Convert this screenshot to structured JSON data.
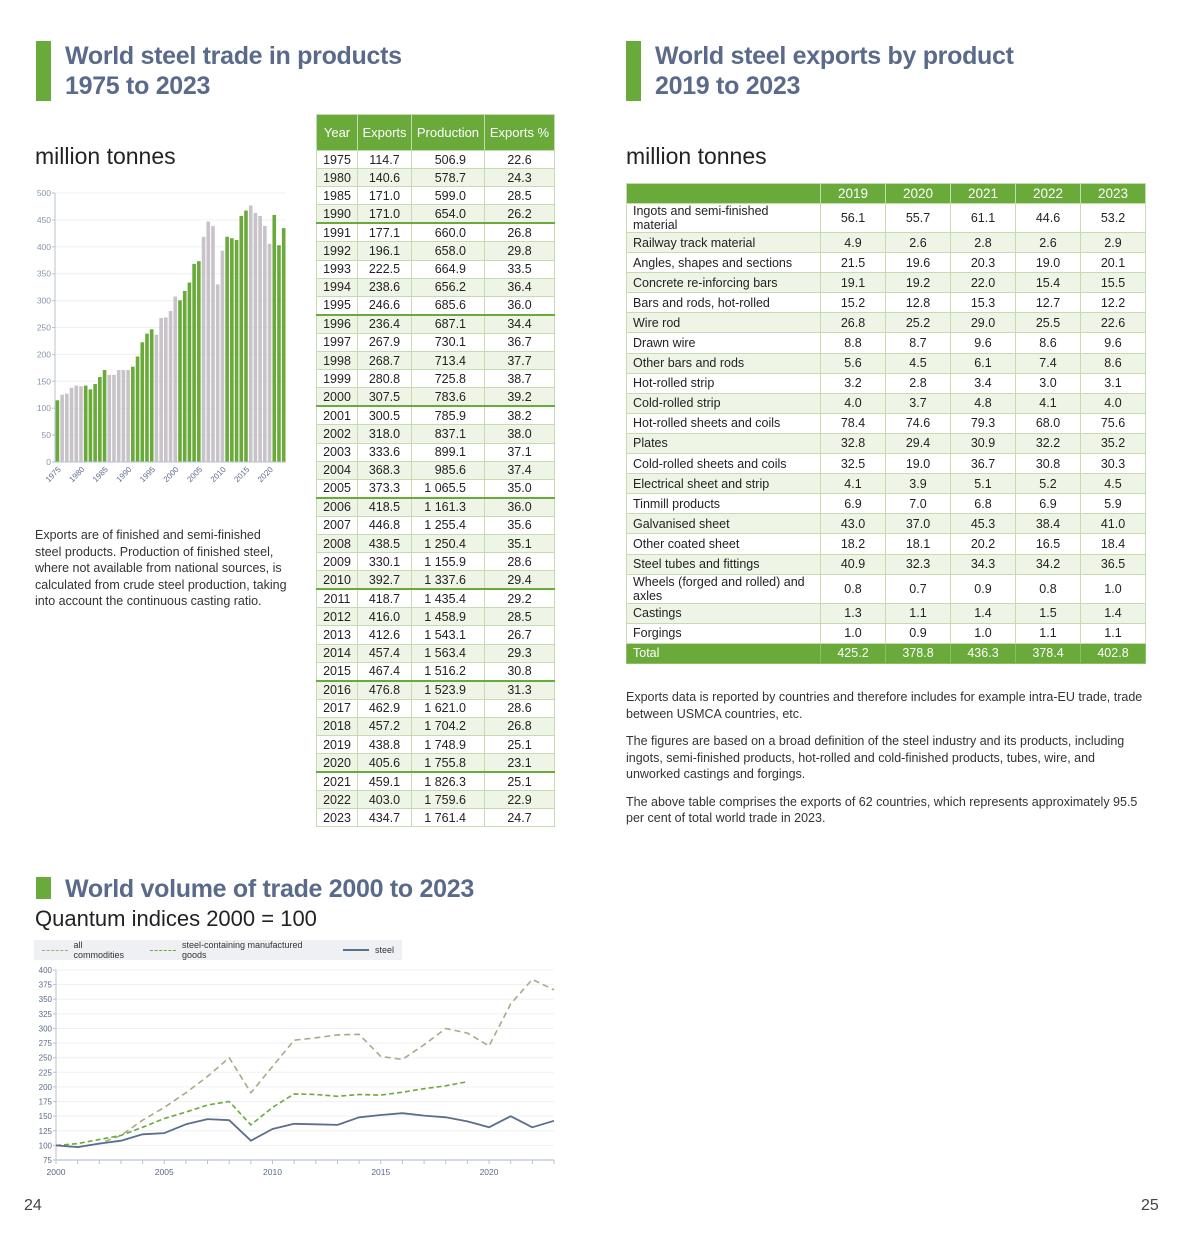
{
  "left_page": {
    "heading1": {
      "line1": "World steel trade in products",
      "line2": "1975 to 2023"
    },
    "unit_label": "million tonnes",
    "description": "Exports are of finished and semi-finished steel products. Production of finished steel, where not available from national sources, is calculated from crude steel production, taking into account the continuous casting ratio.",
    "heading2": "World volume of trade 2000 to 2023",
    "subtitle2": "Quantum indices 2000 = 100",
    "page_number": "24"
  },
  "right_page": {
    "heading": {
      "line1": "World steel exports by product",
      "line2": "2019 to 2023"
    },
    "unit_label": "million tonnes",
    "notes": [
      "Exports data is reported by countries and therefore includes for example intra-EU trade, trade between USMCA countries, etc.",
      "The figures are based on a broad definition of the steel industry and its products, including ingots, semi-finished products, hot-rolled and cold-finished products, tubes, wire, and unworked castings and forgings.",
      "The above table comprises the exports of 62 countries, which represents approximately 95.5 per cent of total world trade in 2023."
    ],
    "page_number": "25"
  },
  "colors": {
    "accent_green": "#6aaa3a",
    "bar_grey": "#c8c3c8",
    "heading_blue": "#5a6a8a",
    "steel_line": "#5a6f8a",
    "all_commodities_line": "#a9a98a",
    "steel_goods_line": "#6aaa3a"
  },
  "chart_data": [
    {
      "type": "bar",
      "title": "World steel trade in products 1975 to 2023",
      "ylabel": "million tonnes",
      "ylim": [
        0,
        500
      ],
      "yticks": [
        0,
        50,
        100,
        150,
        200,
        250,
        300,
        350,
        400,
        450,
        500
      ],
      "xtick_labels": [
        "1975",
        "1980",
        "1985",
        "1990",
        "1995",
        "2000",
        "2005",
        "2010",
        "2015",
        "2020"
      ],
      "grid": true,
      "categories": [
        1975,
        1976,
        1977,
        1978,
        1979,
        1980,
        1981,
        1982,
        1983,
        1984,
        1985,
        1986,
        1987,
        1988,
        1989,
        1990,
        1991,
        1992,
        1993,
        1994,
        1995,
        1996,
        1997,
        1998,
        1999,
        2000,
        2001,
        2002,
        2003,
        2004,
        2005,
        2006,
        2007,
        2008,
        2009,
        2010,
        2011,
        2012,
        2013,
        2014,
        2015,
        2016,
        2017,
        2018,
        2019,
        2020,
        2021,
        2022,
        2023
      ],
      "values": [
        114.7,
        125,
        127,
        138,
        142,
        140.6,
        142,
        135,
        145,
        158,
        171.0,
        162,
        162,
        171,
        171,
        171.0,
        177.1,
        196.1,
        222.5,
        238.6,
        246.6,
        236.4,
        267.9,
        268.7,
        280.8,
        307.5,
        300.5,
        318.0,
        333.6,
        368.3,
        373.3,
        418.5,
        446.8,
        438.5,
        330.1,
        392.7,
        418.7,
        416.0,
        412.6,
        457.4,
        467.4,
        476.8,
        462.9,
        457.2,
        438.8,
        405.6,
        459.1,
        403.0,
        434.7
      ],
      "color_groups": "alternating green/grey in 5-year blocks (1975 green, 1976-1980 grey, 1981-1985 green, ...)"
    },
    {
      "type": "table",
      "title": "World steel trade in products 1975 to 2023",
      "columns": [
        "Year",
        "Exports",
        "Production",
        "Exports %"
      ],
      "rows": [
        [
          "1975",
          "114.7",
          "506.9",
          "22.6"
        ],
        [
          "1980",
          "140.6",
          "578.7",
          "24.3"
        ],
        [
          "1985",
          "171.0",
          "599.0",
          "28.5"
        ],
        [
          "1990",
          "171.0",
          "654.0",
          "26.2"
        ],
        [
          "1991",
          "177.1",
          "660.0",
          "26.8"
        ],
        [
          "1992",
          "196.1",
          "658.0",
          "29.8"
        ],
        [
          "1993",
          "222.5",
          "664.9",
          "33.5"
        ],
        [
          "1994",
          "238.6",
          "656.2",
          "36.4"
        ],
        [
          "1995",
          "246.6",
          "685.6",
          "36.0"
        ],
        [
          "1996",
          "236.4",
          "687.1",
          "34.4"
        ],
        [
          "1997",
          "267.9",
          "730.1",
          "36.7"
        ],
        [
          "1998",
          "268.7",
          "713.4",
          "37.7"
        ],
        [
          "1999",
          "280.8",
          "725.8",
          "38.7"
        ],
        [
          "2000",
          "307.5",
          "783.6",
          "39.2"
        ],
        [
          "2001",
          "300.5",
          "785.9",
          "38.2"
        ],
        [
          "2002",
          "318.0",
          "837.1",
          "38.0"
        ],
        [
          "2003",
          "333.6",
          "899.1",
          "37.1"
        ],
        [
          "2004",
          "368.3",
          "985.6",
          "37.4"
        ],
        [
          "2005",
          "373.3",
          "1 065.5",
          "35.0"
        ],
        [
          "2006",
          "418.5",
          "1 161.3",
          "36.0"
        ],
        [
          "2007",
          "446.8",
          "1 255.4",
          "35.6"
        ],
        [
          "2008",
          "438.5",
          "1 250.4",
          "35.1"
        ],
        [
          "2009",
          "330.1",
          "1 155.9",
          "28.6"
        ],
        [
          "2010",
          "392.7",
          "1 337.6",
          "29.4"
        ],
        [
          "2011",
          "418.7",
          "1 435.4",
          "29.2"
        ],
        [
          "2012",
          "416.0",
          "1 458.9",
          "28.5"
        ],
        [
          "2013",
          "412.6",
          "1 543.1",
          "26.7"
        ],
        [
          "2014",
          "457.4",
          "1 563.4",
          "29.3"
        ],
        [
          "2015",
          "467.4",
          "1 516.2",
          "30.8"
        ],
        [
          "2016",
          "476.8",
          "1 523.9",
          "31.3"
        ],
        [
          "2017",
          "462.9",
          "1 621.0",
          "28.6"
        ],
        [
          "2018",
          "457.2",
          "1 704.2",
          "26.8"
        ],
        [
          "2019",
          "438.8",
          "1 748.9",
          "25.1"
        ],
        [
          "2020",
          "405.6",
          "1 755.8",
          "23.1"
        ],
        [
          "2021",
          "459.1",
          "1 826.3",
          "25.1"
        ],
        [
          "2022",
          "403.0",
          "1 759.6",
          "22.9"
        ],
        [
          "2023",
          "434.7",
          "1 761.4",
          "24.7"
        ]
      ],
      "separator_after": [
        "1990",
        "1995",
        "2000",
        "2005",
        "2010",
        "2015",
        "2020"
      ]
    },
    {
      "type": "table",
      "title": "World steel exports by product 2019 to 2023",
      "columns": [
        "",
        "2019",
        "2020",
        "2021",
        "2022",
        "2023"
      ],
      "rows": [
        [
          "Ingots and semi-finished material",
          "56.1",
          "55.7",
          "61.1",
          "44.6",
          "53.2"
        ],
        [
          "Railway track material",
          "4.9",
          "2.6",
          "2.8",
          "2.6",
          "2.9"
        ],
        [
          "Angles, shapes and sections",
          "21.5",
          "19.6",
          "20.3",
          "19.0",
          "20.1"
        ],
        [
          "Concrete re-inforcing bars",
          "19.1",
          "19.2",
          "22.0",
          "15.4",
          "15.5"
        ],
        [
          "Bars and rods, hot-rolled",
          "15.2",
          "12.8",
          "15.3",
          "12.7",
          "12.2"
        ],
        [
          "Wire rod",
          "26.8",
          "25.2",
          "29.0",
          "25.5",
          "22.6"
        ],
        [
          "Drawn wire",
          "8.8",
          "8.7",
          "9.6",
          "8.6",
          "9.6"
        ],
        [
          "Other bars and rods",
          "5.6",
          "4.5",
          "6.1",
          "7.4",
          "8.6"
        ],
        [
          "Hot-rolled strip",
          "3.2",
          "2.8",
          "3.4",
          "3.0",
          "3.1"
        ],
        [
          "Cold-rolled strip",
          "4.0",
          "3.7",
          "4.8",
          "4.1",
          "4.0"
        ],
        [
          "Hot-rolled sheets and coils",
          "78.4",
          "74.6",
          "79.3",
          "68.0",
          "75.6"
        ],
        [
          "Plates",
          "32.8",
          "29.4",
          "30.9",
          "32.2",
          "35.2"
        ],
        [
          "Cold-rolled sheets and coils",
          "32.5",
          "19.0",
          "36.7",
          "30.8",
          "30.3"
        ],
        [
          "Electrical sheet and strip",
          "4.1",
          "3.9",
          "5.1",
          "5.2",
          "4.5"
        ],
        [
          "Tinmill products",
          "6.9",
          "7.0",
          "6.8",
          "6.9",
          "5.9"
        ],
        [
          "Galvanised sheet",
          "43.0",
          "37.0",
          "45.3",
          "38.4",
          "41.0"
        ],
        [
          "Other coated sheet",
          "18.2",
          "18.1",
          "20.2",
          "16.5",
          "18.4"
        ],
        [
          "Steel tubes and fittings",
          "40.9",
          "32.3",
          "34.3",
          "34.2",
          "36.5"
        ],
        [
          "Wheels (forged and rolled) and axles",
          "0.8",
          "0.7",
          "0.9",
          "0.8",
          "1.0"
        ],
        [
          "Castings",
          "1.3",
          "1.1",
          "1.4",
          "1.5",
          "1.4"
        ],
        [
          "Forgings",
          "1.0",
          "0.9",
          "1.0",
          "1.1",
          "1.1"
        ]
      ],
      "total": [
        "Total",
        "425.2",
        "378.8",
        "436.3",
        "378.4",
        "402.8"
      ]
    },
    {
      "type": "line",
      "title": "World volume of trade 2000 to 2023",
      "subtitle": "Quantum indices 2000 = 100",
      "xlim": [
        2000,
        2023
      ],
      "ylim": [
        75,
        400
      ],
      "yticks": [
        75,
        100,
        125,
        150,
        175,
        200,
        225,
        250,
        275,
        300,
        325,
        350,
        375,
        400
      ],
      "xtick_labels": [
        "2000",
        "2005",
        "2010",
        "2015",
        "2020"
      ],
      "grid": true,
      "legend": "top-left",
      "series": [
        {
          "name": "all commodities",
          "style": "dashed",
          "x": [
            2000,
            2001,
            2002,
            2003,
            2004,
            2005,
            2006,
            2007,
            2008,
            2009,
            2010,
            2011,
            2012,
            2013,
            2014,
            2015,
            2016,
            2017,
            2018,
            2019,
            2020,
            2021,
            2022,
            2023
          ],
          "values": [
            100,
            97,
            103,
            117,
            143,
            165,
            190,
            218,
            250,
            190,
            235,
            280,
            284,
            289,
            290,
            252,
            247,
            272,
            300,
            292,
            270,
            342,
            384,
            366
          ]
        },
        {
          "name": "steel-containing manufactured goods",
          "style": "dashed",
          "x": [
            2000,
            2001,
            2002,
            2003,
            2004,
            2005,
            2006,
            2007,
            2008,
            2009,
            2010,
            2011,
            2012,
            2013,
            2014,
            2015,
            2016,
            2017,
            2018,
            2019
          ],
          "values": [
            100,
            103,
            110,
            117,
            131,
            146,
            157,
            169,
            175,
            135,
            165,
            188,
            187,
            184,
            187,
            186,
            191,
            197,
            202,
            209
          ]
        },
        {
          "name": "steel",
          "style": "solid",
          "x": [
            2000,
            2001,
            2002,
            2003,
            2004,
            2005,
            2006,
            2007,
            2008,
            2009,
            2010,
            2011,
            2012,
            2013,
            2014,
            2015,
            2016,
            2017,
            2018,
            2019,
            2020,
            2021,
            2022,
            2023
          ],
          "values": [
            100,
            97,
            103,
            108,
            119,
            121,
            136,
            145,
            143,
            108,
            128,
            137,
            136,
            135,
            148,
            152,
            155,
            151,
            148,
            141,
            131,
            150,
            131,
            142
          ]
        }
      ]
    }
  ]
}
